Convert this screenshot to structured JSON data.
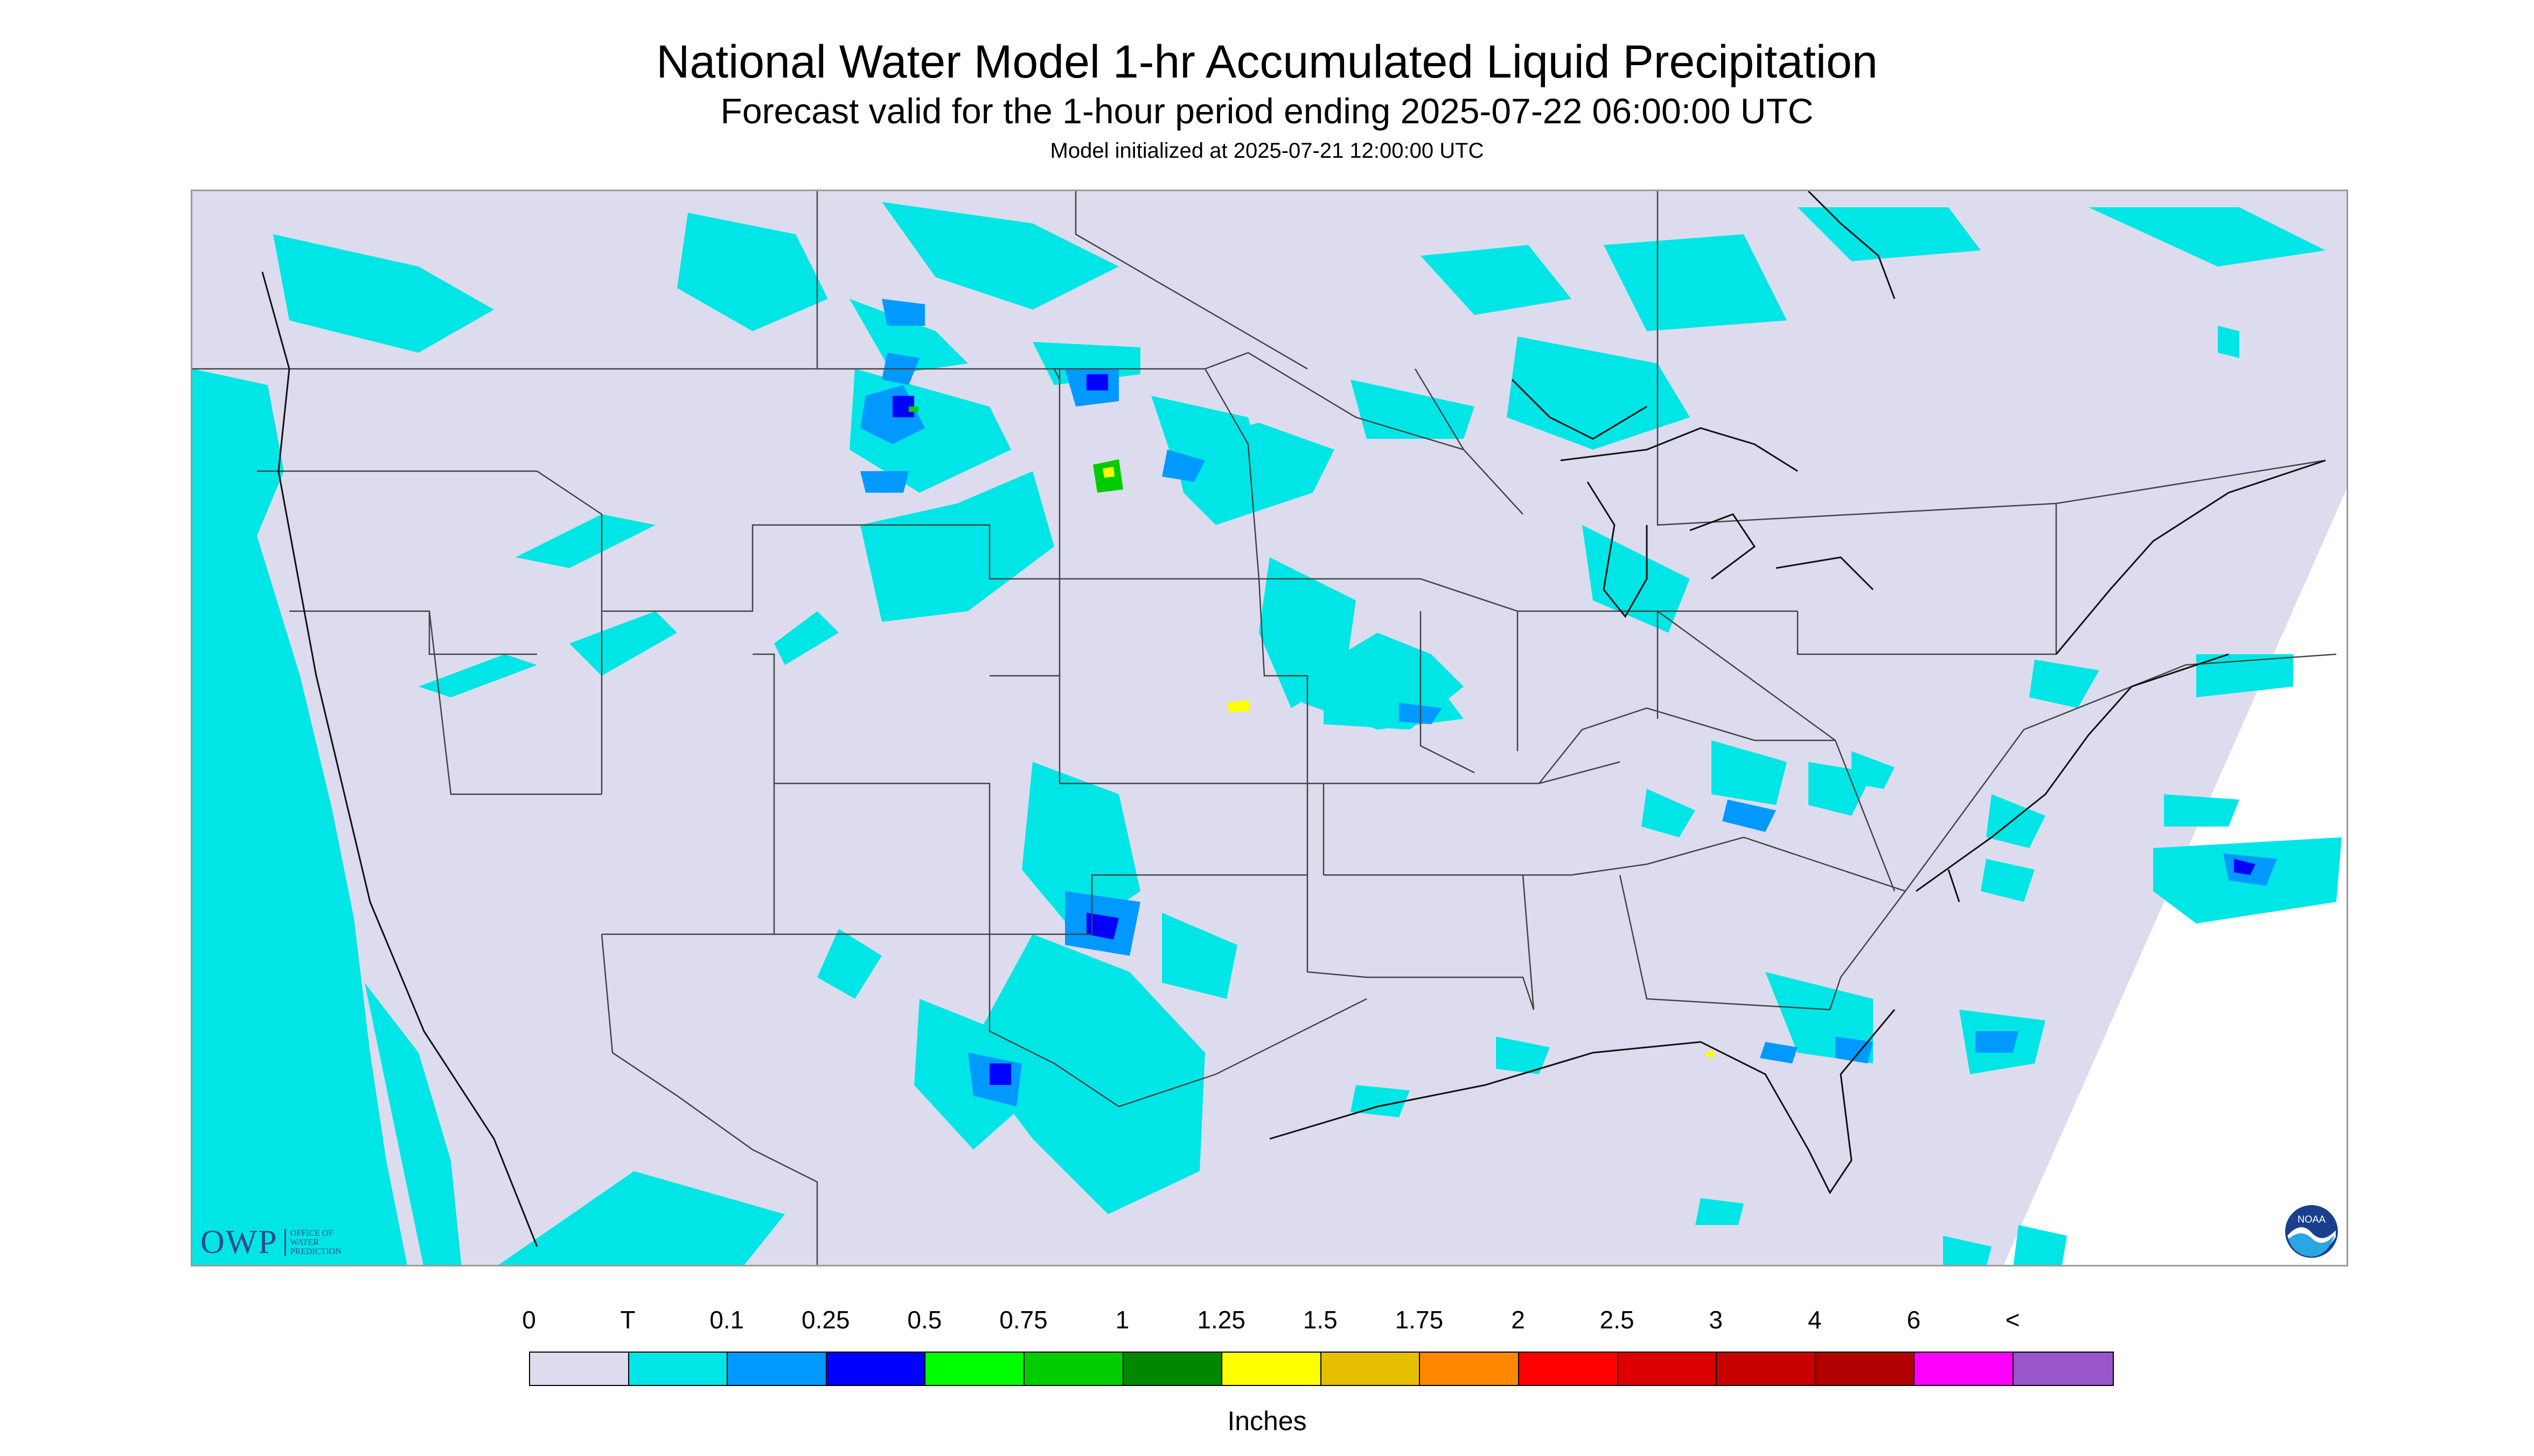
{
  "header": {
    "title": "National Water Model 1-hr Accumulated Liquid Precipitation",
    "subtitle": "Forecast valid for the 1-hour period ending 2025-07-22 06:00:00 UTC",
    "init": "Model initialized at 2025-07-21 12:00:00 UTC"
  },
  "colors": {
    "background": "#dcdcee",
    "trace": "#00e6e6",
    "light": "#0099ff",
    "blue": "#0000ff",
    "green": "#00cc00",
    "yellow": "#ffff00",
    "border": "#444444"
  },
  "logos": {
    "owp_mark": "OWP",
    "owp_text": "OFFICE OF\nWATER\nPREDICTION",
    "noaa_text": "NOAA"
  },
  "legend": {
    "units": "Inches",
    "bins": [
      {
        "label": "0",
        "color": "#dcdcee"
      },
      {
        "label": "T",
        "color": "#00e6e6"
      },
      {
        "label": "0.1",
        "color": "#0099ff"
      },
      {
        "label": "0.25",
        "color": "#0000ff"
      },
      {
        "label": "0.5",
        "color": "#00ff00"
      },
      {
        "label": "0.75",
        "color": "#00cc00"
      },
      {
        "label": "1",
        "color": "#008800"
      },
      {
        "label": "1.25",
        "color": "#ffff00"
      },
      {
        "label": "1.5",
        "color": "#e6c000"
      },
      {
        "label": "1.75",
        "color": "#ff8800"
      },
      {
        "label": "2",
        "color": "#ff0000"
      },
      {
        "label": "2.5",
        "color": "#dd0000"
      },
      {
        "label": "3",
        "color": "#c80000"
      },
      {
        "label": "4",
        "color": "#b00000"
      },
      {
        "label": "6",
        "color": "#ff00ff"
      }
    ],
    "last_label": "<",
    "last_color": "#9955cc"
  }
}
